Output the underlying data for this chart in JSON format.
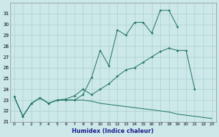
{
  "xlabel": "Humidex (Indice chaleur)",
  "line1_x": [
    0,
    1,
    2,
    3,
    4,
    5,
    6,
    7,
    8,
    9,
    10,
    11,
    12,
    13,
    14,
    15,
    16,
    17,
    18,
    19
  ],
  "line1_y": [
    23.3,
    21.5,
    22.7,
    23.2,
    22.7,
    23.0,
    23.0,
    23.0,
    23.5,
    25.1,
    27.6,
    26.2,
    29.5,
    29.0,
    30.2,
    30.2,
    29.2,
    31.3,
    31.3,
    29.8
  ],
  "line2_x": [
    0,
    1,
    2,
    3,
    4,
    5,
    6,
    7,
    8,
    9,
    10,
    11,
    12,
    13,
    14,
    15,
    16,
    17,
    18,
    19,
    20,
    21
  ],
  "line2_y": [
    23.3,
    21.5,
    22.7,
    23.2,
    22.7,
    23.0,
    23.1,
    23.4,
    24.0,
    23.5,
    24.0,
    24.5,
    25.2,
    25.8,
    26.0,
    26.5,
    27.0,
    27.5,
    27.8,
    27.6,
    27.6,
    24.0
  ],
  "line3_x": [
    0,
    1,
    2,
    3,
    4,
    5,
    6,
    7,
    8,
    9,
    10,
    11,
    12,
    13,
    14,
    15,
    16,
    17,
    18,
    19,
    20,
    21,
    22,
    23
  ],
  "line3_y": [
    23.3,
    21.5,
    22.7,
    23.2,
    22.7,
    23.0,
    23.0,
    23.0,
    23.0,
    22.9,
    22.7,
    22.6,
    22.5,
    22.4,
    22.3,
    22.2,
    22.1,
    22.0,
    21.9,
    21.7,
    21.6,
    21.5,
    21.4,
    21.3
  ],
  "ylim": [
    21,
    32
  ],
  "xlim": [
    -0.5,
    23.5
  ],
  "yticks": [
    21,
    22,
    23,
    24,
    25,
    26,
    27,
    28,
    29,
    30,
    31
  ],
  "xticks": [
    0,
    1,
    2,
    3,
    4,
    5,
    6,
    7,
    8,
    9,
    10,
    11,
    12,
    13,
    14,
    15,
    16,
    17,
    18,
    19,
    20,
    21,
    22,
    23
  ],
  "line_color": "#2a7a6a",
  "bg_color": "#cce8e8",
  "grid_color": "#aacfcf"
}
